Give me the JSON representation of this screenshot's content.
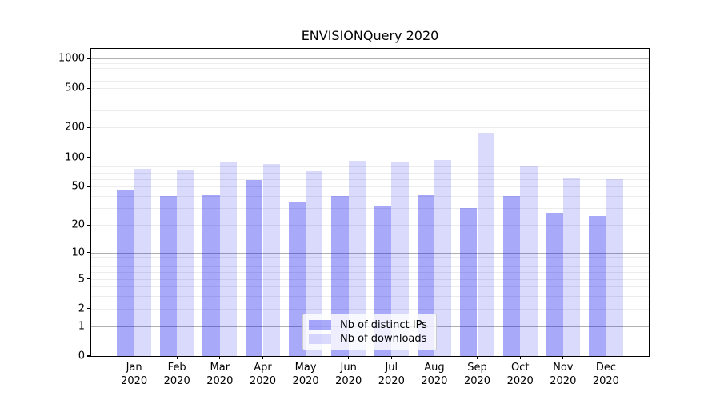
{
  "chart_data": {
    "type": "bar",
    "title": "ENVISIONQuery 2020",
    "categories": [
      "Jan",
      "Feb",
      "Mar",
      "Apr",
      "May",
      "Jun",
      "Jul",
      "Aug",
      "Sep",
      "Oct",
      "Nov",
      "Dec"
    ],
    "category_year": "2020",
    "series": [
      {
        "name": "Nb of distinct IPs",
        "color": "rgba(10,10,240,0.35)",
        "values": [
          47,
          40,
          41,
          59,
          35,
          40,
          32,
          41,
          30,
          40,
          27,
          25
        ]
      },
      {
        "name": "Nb of downloads",
        "color": "rgba(10,10,240,0.15)",
        "values": [
          76,
          75,
          91,
          85,
          72,
          92,
          91,
          94,
          178,
          80,
          62,
          60
        ]
      }
    ],
    "xlabel": "",
    "ylabel": "",
    "yscale": "log1p",
    "ylim": [
      0,
      1250
    ],
    "yticks": [
      1000,
      500,
      200,
      100,
      50,
      20,
      10,
      5,
      2,
      1,
      0
    ],
    "major_gridlines": [
      1,
      10,
      100,
      1000
    ],
    "grid": "on",
    "grid_major_color": "#b0b0b0",
    "grid_minor_color": "#ececec",
    "legend": {
      "position": "lower-center"
    }
  }
}
